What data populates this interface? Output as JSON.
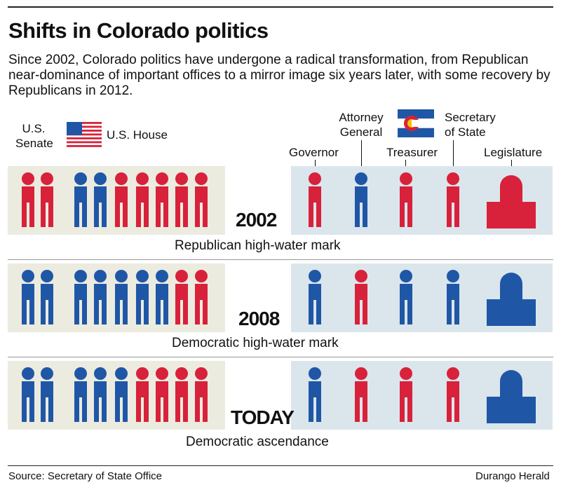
{
  "title": "Shifts in Colorado politics",
  "subtitle": "Since 2002, Colorado politics have undergone a radical transformation, from Republican near-dominance of important offices to a mirror image six years later, with some recovery by Republicans in 2012.",
  "headers": {
    "us_senate": [
      "U.S.",
      "Senate"
    ],
    "us_house": "U.S. House",
    "governor": "Governor",
    "attorney_general": [
      "Attorney",
      "General"
    ],
    "treasurer": "Treasurer",
    "secretary_of_state": [
      "Secretary",
      "of State"
    ],
    "legislature": "Legislature"
  },
  "colors": {
    "republican": "#d8213a",
    "democrat": "#1f57a6",
    "federal_panel": "#ecebe0",
    "state_panel": "#dbe5ec"
  },
  "rows": [
    {
      "year": "2002",
      "caption": "Republican high-water mark",
      "senate": [
        "R",
        "R"
      ],
      "house": [
        "D",
        "D",
        "R",
        "R",
        "R",
        "R",
        "R"
      ],
      "state_offices": [
        "R",
        "D",
        "R",
        "R"
      ],
      "legislature": "R"
    },
    {
      "year": "2008",
      "caption": "Democratic high-water mark",
      "senate": [
        "D",
        "D"
      ],
      "house": [
        "D",
        "D",
        "D",
        "D",
        "D",
        "R",
        "R"
      ],
      "state_offices": [
        "D",
        "R",
        "D",
        "D"
      ],
      "legislature": "D"
    },
    {
      "year": "TODAY",
      "caption": "Democratic ascendance",
      "senate": [
        "D",
        "D"
      ],
      "house": [
        "D",
        "D",
        "D",
        "R",
        "R",
        "R",
        "R"
      ],
      "state_offices": [
        "D",
        "R",
        "R",
        "R"
      ],
      "legislature": "D"
    }
  ],
  "source": "Source: Secretary of State Office",
  "credit": "Durango Herald"
}
